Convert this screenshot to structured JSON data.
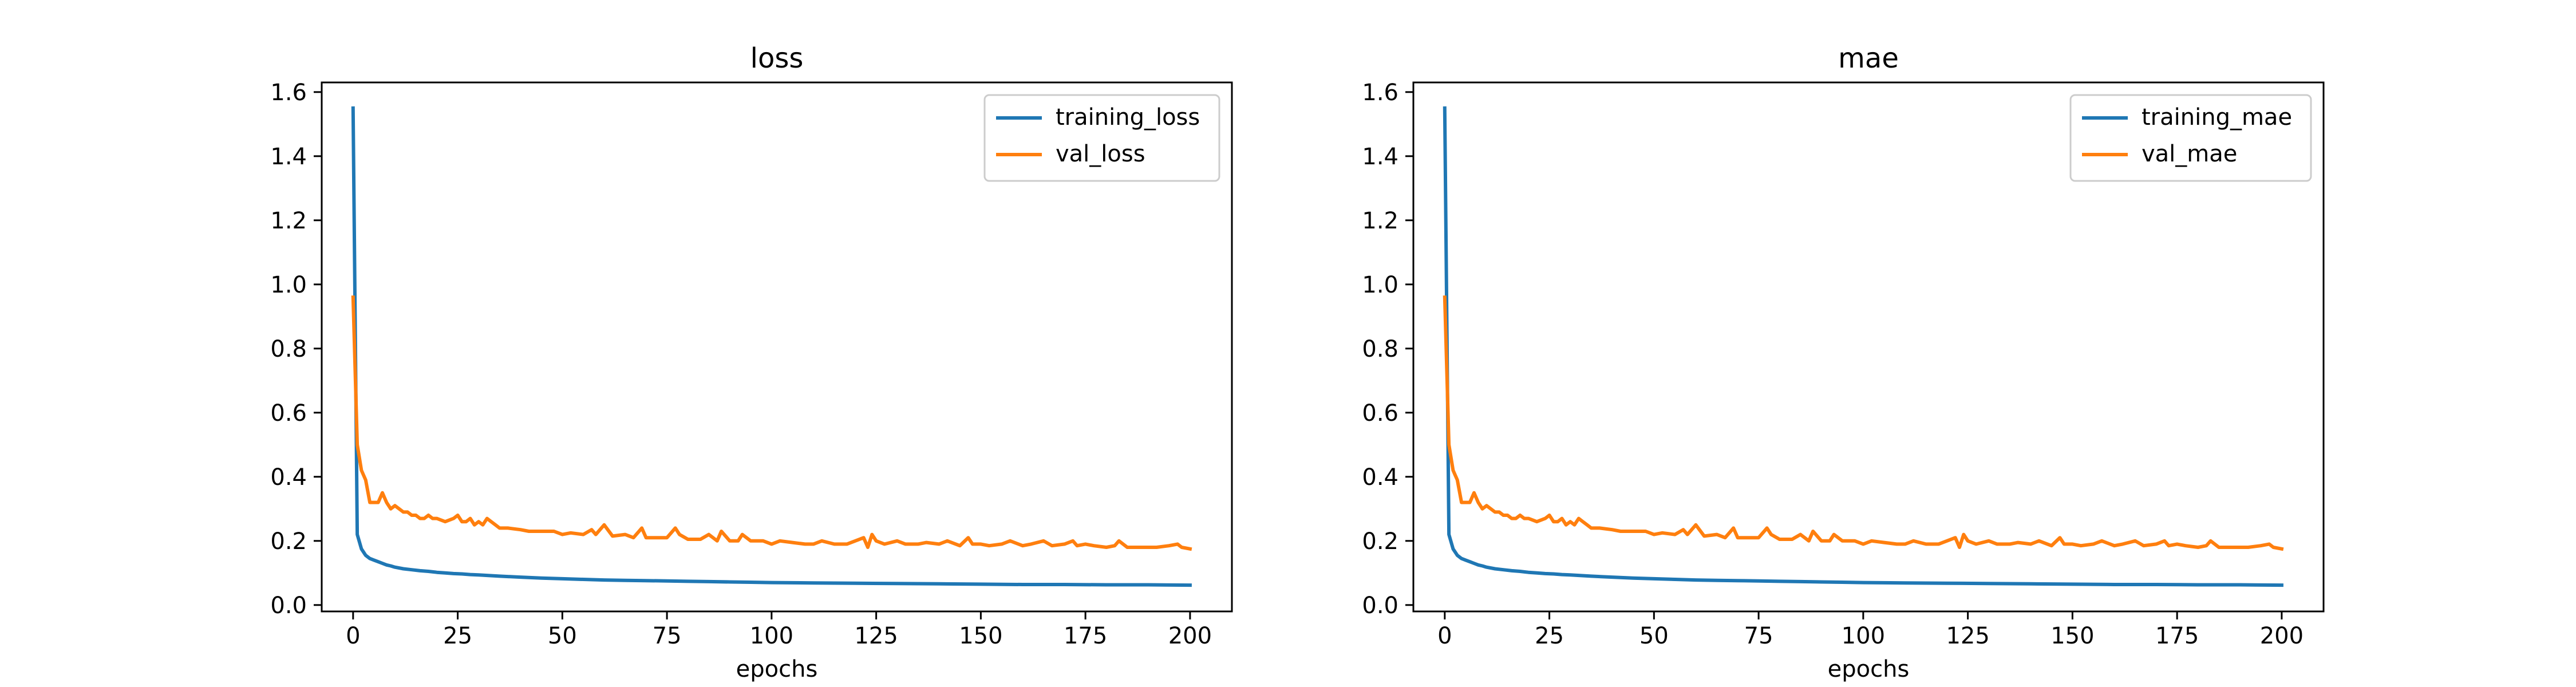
{
  "chart_data": [
    {
      "type": "line",
      "title": "loss",
      "xlabel": "epochs",
      "ylabel": "",
      "xlim": [
        -7.5,
        210
      ],
      "ylim": [
        -0.02,
        1.63
      ],
      "x_ticks": [
        0,
        25,
        50,
        75,
        100,
        125,
        150,
        175,
        200
      ],
      "y_ticks": [
        0.0,
        0.2,
        0.4,
        0.6,
        0.8,
        1.0,
        1.2,
        1.4,
        1.6
      ],
      "y_tick_labels": [
        "0.0",
        "0.2",
        "0.4",
        "0.6",
        "0.8",
        "1.0",
        "1.2",
        "1.4",
        "1.6"
      ],
      "legend_position": "top-right",
      "grid": false,
      "series": [
        {
          "name": "training_loss",
          "color": "#1f77b4",
          "x": [
            0,
            1,
            2,
            3,
            4,
            5,
            6,
            7,
            8,
            9,
            10,
            12,
            14,
            16,
            18,
            20,
            22,
            24,
            26,
            28,
            30,
            35,
            40,
            45,
            50,
            55,
            60,
            65,
            70,
            75,
            80,
            85,
            90,
            95,
            100,
            110,
            120,
            130,
            140,
            150,
            160,
            170,
            180,
            190,
            200
          ],
          "y": [
            1.55,
            0.22,
            0.175,
            0.155,
            0.145,
            0.14,
            0.135,
            0.13,
            0.125,
            0.122,
            0.118,
            0.113,
            0.11,
            0.107,
            0.105,
            0.102,
            0.1,
            0.098,
            0.097,
            0.095,
            0.094,
            0.09,
            0.087,
            0.084,
            0.082,
            0.08,
            0.078,
            0.077,
            0.076,
            0.075,
            0.074,
            0.073,
            0.072,
            0.071,
            0.07,
            0.069,
            0.068,
            0.067,
            0.066,
            0.065,
            0.064,
            0.064,
            0.063,
            0.063,
            0.062
          ]
        },
        {
          "name": "val_loss",
          "color": "#ff7f0e",
          "x": [
            0,
            1,
            2,
            3,
            4,
            5,
            6,
            7,
            8,
            9,
            10,
            11,
            12,
            13,
            14,
            15,
            16,
            17,
            18,
            19,
            20,
            22,
            24,
            25,
            26,
            27,
            28,
            29,
            30,
            31,
            32,
            33,
            34,
            35,
            37,
            40,
            42,
            45,
            48,
            50,
            52,
            55,
            57,
            58,
            60,
            62,
            65,
            67,
            69,
            70,
            72,
            75,
            77,
            78,
            80,
            83,
            85,
            87,
            88,
            90,
            92,
            93,
            95,
            98,
            100,
            102,
            105,
            108,
            110,
            112,
            115,
            118,
            120,
            122,
            123,
            124,
            125,
            127,
            130,
            132,
            135,
            137,
            140,
            142,
            145,
            147,
            148,
            150,
            152,
            155,
            157,
            160,
            162,
            165,
            167,
            170,
            172,
            173,
            175,
            177,
            180,
            182,
            183,
            185,
            188,
            190,
            192,
            195,
            197,
            198,
            200
          ],
          "y": [
            0.96,
            0.5,
            0.42,
            0.39,
            0.32,
            0.32,
            0.32,
            0.35,
            0.32,
            0.3,
            0.31,
            0.3,
            0.29,
            0.29,
            0.28,
            0.28,
            0.27,
            0.27,
            0.28,
            0.27,
            0.27,
            0.26,
            0.27,
            0.28,
            0.26,
            0.26,
            0.27,
            0.25,
            0.26,
            0.25,
            0.27,
            0.26,
            0.25,
            0.24,
            0.24,
            0.235,
            0.23,
            0.23,
            0.23,
            0.22,
            0.225,
            0.22,
            0.235,
            0.22,
            0.25,
            0.215,
            0.22,
            0.21,
            0.24,
            0.21,
            0.21,
            0.21,
            0.24,
            0.22,
            0.205,
            0.205,
            0.22,
            0.2,
            0.23,
            0.2,
            0.2,
            0.22,
            0.2,
            0.2,
            0.19,
            0.2,
            0.195,
            0.19,
            0.19,
            0.2,
            0.19,
            0.19,
            0.2,
            0.21,
            0.18,
            0.22,
            0.2,
            0.19,
            0.2,
            0.19,
            0.19,
            0.195,
            0.19,
            0.2,
            0.185,
            0.21,
            0.19,
            0.19,
            0.185,
            0.19,
            0.2,
            0.185,
            0.19,
            0.2,
            0.185,
            0.19,
            0.2,
            0.185,
            0.19,
            0.185,
            0.18,
            0.185,
            0.2,
            0.18,
            0.18,
            0.18,
            0.18,
            0.185,
            0.19,
            0.18,
            0.175
          ]
        }
      ]
    },
    {
      "type": "line",
      "title": "mae",
      "xlabel": "epochs",
      "ylabel": "",
      "xlim": [
        -7.5,
        210
      ],
      "ylim": [
        -0.02,
        1.63
      ],
      "x_ticks": [
        0,
        25,
        50,
        75,
        100,
        125,
        150,
        175,
        200
      ],
      "y_ticks": [
        0.0,
        0.2,
        0.4,
        0.6,
        0.8,
        1.0,
        1.2,
        1.4,
        1.6
      ],
      "y_tick_labels": [
        "0.0",
        "0.2",
        "0.4",
        "0.6",
        "0.8",
        "1.0",
        "1.2",
        "1.4",
        "1.6"
      ],
      "legend_position": "top-right",
      "grid": false,
      "series": [
        {
          "name": "training_mae",
          "color": "#1f77b4",
          "x": [
            0,
            1,
            2,
            3,
            4,
            5,
            6,
            7,
            8,
            9,
            10,
            12,
            14,
            16,
            18,
            20,
            22,
            24,
            26,
            28,
            30,
            35,
            40,
            45,
            50,
            55,
            60,
            65,
            70,
            75,
            80,
            85,
            90,
            95,
            100,
            110,
            120,
            130,
            140,
            150,
            160,
            170,
            180,
            190,
            200
          ],
          "y": [
            1.55,
            0.22,
            0.175,
            0.155,
            0.145,
            0.14,
            0.135,
            0.13,
            0.125,
            0.122,
            0.118,
            0.113,
            0.11,
            0.107,
            0.105,
            0.102,
            0.1,
            0.098,
            0.097,
            0.095,
            0.094,
            0.09,
            0.087,
            0.084,
            0.082,
            0.08,
            0.078,
            0.077,
            0.076,
            0.075,
            0.074,
            0.073,
            0.072,
            0.071,
            0.07,
            0.069,
            0.068,
            0.067,
            0.066,
            0.065,
            0.064,
            0.064,
            0.063,
            0.063,
            0.062
          ]
        },
        {
          "name": "val_mae",
          "color": "#ff7f0e",
          "x": [
            0,
            1,
            2,
            3,
            4,
            5,
            6,
            7,
            8,
            9,
            10,
            11,
            12,
            13,
            14,
            15,
            16,
            17,
            18,
            19,
            20,
            22,
            24,
            25,
            26,
            27,
            28,
            29,
            30,
            31,
            32,
            33,
            34,
            35,
            37,
            40,
            42,
            45,
            48,
            50,
            52,
            55,
            57,
            58,
            60,
            62,
            65,
            67,
            69,
            70,
            72,
            75,
            77,
            78,
            80,
            83,
            85,
            87,
            88,
            90,
            92,
            93,
            95,
            98,
            100,
            102,
            105,
            108,
            110,
            112,
            115,
            118,
            120,
            122,
            123,
            124,
            125,
            127,
            130,
            132,
            135,
            137,
            140,
            142,
            145,
            147,
            148,
            150,
            152,
            155,
            157,
            160,
            162,
            165,
            167,
            170,
            172,
            173,
            175,
            177,
            180,
            182,
            183,
            185,
            188,
            190,
            192,
            195,
            197,
            198,
            200
          ],
          "y": [
            0.96,
            0.5,
            0.42,
            0.39,
            0.32,
            0.32,
            0.32,
            0.35,
            0.32,
            0.3,
            0.31,
            0.3,
            0.29,
            0.29,
            0.28,
            0.28,
            0.27,
            0.27,
            0.28,
            0.27,
            0.27,
            0.26,
            0.27,
            0.28,
            0.26,
            0.26,
            0.27,
            0.25,
            0.26,
            0.25,
            0.27,
            0.26,
            0.25,
            0.24,
            0.24,
            0.235,
            0.23,
            0.23,
            0.23,
            0.22,
            0.225,
            0.22,
            0.235,
            0.22,
            0.25,
            0.215,
            0.22,
            0.21,
            0.24,
            0.21,
            0.21,
            0.21,
            0.24,
            0.22,
            0.205,
            0.205,
            0.22,
            0.2,
            0.23,
            0.2,
            0.2,
            0.22,
            0.2,
            0.2,
            0.19,
            0.2,
            0.195,
            0.19,
            0.19,
            0.2,
            0.19,
            0.19,
            0.2,
            0.21,
            0.18,
            0.22,
            0.2,
            0.19,
            0.2,
            0.19,
            0.19,
            0.195,
            0.19,
            0.2,
            0.185,
            0.21,
            0.19,
            0.19,
            0.185,
            0.19,
            0.2,
            0.185,
            0.19,
            0.2,
            0.185,
            0.19,
            0.2,
            0.185,
            0.19,
            0.185,
            0.18,
            0.185,
            0.2,
            0.18,
            0.18,
            0.18,
            0.18,
            0.185,
            0.19,
            0.18,
            0.175
          ]
        }
      ]
    }
  ]
}
